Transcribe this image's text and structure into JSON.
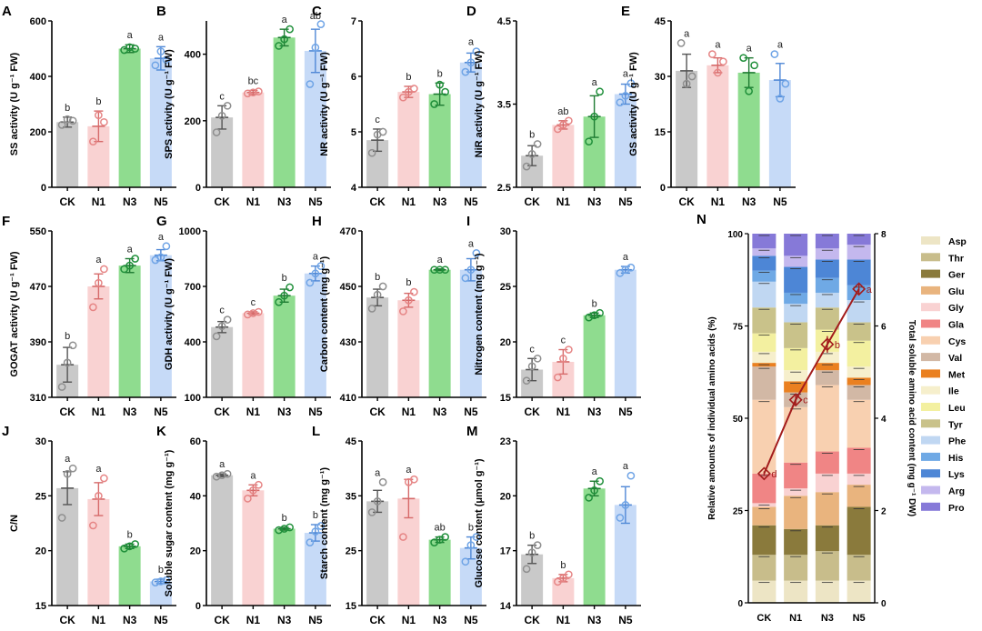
{
  "figure": {
    "categories": [
      "CK",
      "N1",
      "N3",
      "N5"
    ],
    "colors": {
      "CK": "#c9c9c9",
      "N1": "#f9d2d2",
      "N3": "#8fdc8f",
      "N5": "#c6daf7"
    },
    "marker_colors": {
      "CK": "#8f8f8f",
      "N1": "#e68585",
      "N3": "#1f8f3a",
      "N5": "#6fa4e6"
    },
    "errbar_colors": {
      "CK": "#555555",
      "N1": "#d66a6a",
      "N3": "#1d7a31",
      "N5": "#4f88d6"
    }
  },
  "chart_data": [
    {
      "panel": "A",
      "type": "bar",
      "ylabel": "SS activity (U g⁻¹ FW)",
      "ylim": [
        0,
        600
      ],
      "yticks": [
        "0",
        "200",
        "400",
        "600"
      ],
      "categories": [
        "CK",
        "N1",
        "N3",
        "N5"
      ],
      "values": [
        235,
        220,
        500,
        465
      ],
      "errors": [
        18,
        55,
        14,
        42
      ],
      "letters": [
        "b",
        "b",
        "a",
        "a"
      ],
      "points": [
        [
          225,
          245,
          240
        ],
        [
          165,
          260,
          235
        ],
        [
          495,
          505,
          500
        ],
        [
          440,
          490,
          460
        ]
      ]
    },
    {
      "panel": "B",
      "type": "bar",
      "ylabel": "SPS activity (U g⁻¹ FW)",
      "ylim": [
        0,
        500
      ],
      "yticks": [
        "0",
        "200",
        "400"
      ],
      "categories": [
        "CK",
        "N1",
        "N3",
        "N5"
      ],
      "values": [
        210,
        285,
        450,
        410
      ],
      "errors": [
        35,
        6,
        25,
        65
      ],
      "letters": [
        "c",
        "bc",
        "a",
        "ab"
      ],
      "points": [
        [
          165,
          215,
          245
        ],
        [
          282,
          285,
          288
        ],
        [
          425,
          445,
          475
        ],
        [
          310,
          420,
          490
        ]
      ]
    },
    {
      "panel": "C",
      "type": "bar",
      "ylabel": "NR activity (U g⁻¹ FW)",
      "ylim": [
        4,
        7
      ],
      "yticks": [
        "4",
        "5",
        "6",
        "7"
      ],
      "categories": [
        "CK",
        "N1",
        "N3",
        "N5"
      ],
      "values": [
        4.85,
        5.72,
        5.68,
        6.25
      ],
      "errors": [
        0.2,
        0.1,
        0.2,
        0.17
      ],
      "letters": [
        "c",
        "b",
        "b",
        "a"
      ],
      "points": [
        [
          4.62,
          4.95,
          5.0
        ],
        [
          5.62,
          5.72,
          5.78
        ],
        [
          5.5,
          5.85,
          5.72
        ],
        [
          6.08,
          6.25,
          6.45
        ]
      ]
    },
    {
      "panel": "D",
      "type": "bar",
      "ylabel": "NiR activity (U g⁻¹ FW)",
      "ylim": [
        2.5,
        4.5
      ],
      "yticks": [
        "2.5",
        "3.5",
        "4.5"
      ],
      "categories": [
        "CK",
        "N1",
        "N3",
        "N5"
      ],
      "values": [
        2.88,
        3.25,
        3.35,
        3.62
      ],
      "errors": [
        0.12,
        0.05,
        0.25,
        0.12
      ],
      "letters": [
        "b",
        "ab",
        "a",
        "a"
      ],
      "points": [
        [
          2.75,
          2.9,
          3.02
        ],
        [
          3.2,
          3.25,
          3.3
        ],
        [
          3.05,
          3.35,
          3.65
        ],
        [
          3.52,
          3.6,
          3.75
        ]
      ]
    },
    {
      "panel": "E",
      "type": "bar",
      "ylabel": "GS activity (U g⁻¹ FW)",
      "ylim": [
        0,
        45
      ],
      "yticks": [
        "0",
        "15",
        "30",
        "45"
      ],
      "categories": [
        "CK",
        "N1",
        "N3",
        "N5"
      ],
      "values": [
        31.5,
        33,
        31,
        29
      ],
      "errors": [
        4.5,
        2,
        4,
        4.5
      ],
      "letters": [
        "a",
        "a",
        "a",
        "a"
      ],
      "points": [
        [
          39,
          28,
          30
        ],
        [
          36,
          31,
          34
        ],
        [
          35,
          26,
          33
        ],
        [
          36,
          24,
          28
        ]
      ]
    },
    {
      "panel": "F",
      "type": "bar",
      "ylabel": "GOGAT activity (U g⁻¹ FW)",
      "ylim": [
        310,
        550
      ],
      "yticks": [
        "310",
        "390",
        "470",
        "550"
      ],
      "categories": [
        "CK",
        "N1",
        "N3",
        "N5"
      ],
      "values": [
        357,
        470,
        500,
        515
      ],
      "errors": [
        25,
        18,
        10,
        8
      ],
      "letters": [
        "b",
        "a",
        "a",
        "a"
      ],
      "points": [
        [
          325,
          360,
          385
        ],
        [
          440,
          475,
          495
        ],
        [
          495,
          500,
          510
        ],
        [
          508,
          512,
          528
        ]
      ]
    },
    {
      "panel": "G",
      "type": "bar",
      "ylabel": "GDH activity (U g⁻¹ FW)",
      "ylim": [
        100,
        1000
      ],
      "yticks": [
        "100",
        "400",
        "700",
        "1000"
      ],
      "categories": [
        "CK",
        "N1",
        "N3",
        "N5"
      ],
      "values": [
        480,
        555,
        650,
        770
      ],
      "errors": [
        30,
        8,
        35,
        40
      ],
      "letters": [
        "c",
        "c",
        "b",
        "a"
      ],
      "points": [
        [
          430,
          485,
          520
        ],
        [
          548,
          555,
          562
        ],
        [
          615,
          650,
          695
        ],
        [
          720,
          770,
          810
        ]
      ]
    },
    {
      "panel": "H",
      "type": "bar",
      "ylabel": "Carbon content (mg g⁻¹)",
      "ylim": [
        410,
        470
      ],
      "yticks": [
        "410",
        "430",
        "450",
        "470"
      ],
      "categories": [
        "CK",
        "N1",
        "N3",
        "N5"
      ],
      "values": [
        446,
        445,
        456,
        456
      ],
      "errors": [
        3,
        2.5,
        0.3,
        4
      ],
      "letters": [
        "b",
        "b",
        "a",
        "a"
      ],
      "points": [
        [
          442,
          447,
          450
        ],
        [
          441,
          445,
          448
        ],
        [
          456,
          456,
          456
        ],
        [
          453,
          456,
          462
        ]
      ]
    },
    {
      "panel": "I",
      "type": "bar",
      "ylabel": "Nitrogen content (mg g⁻¹)",
      "ylim": [
        15,
        30
      ],
      "yticks": [
        "15",
        "20",
        "25",
        "30"
      ],
      "categories": [
        "CK",
        "N1",
        "N3",
        "N5"
      ],
      "values": [
        17.5,
        18.2,
        22.4,
        26.5
      ],
      "errors": [
        1,
        1.1,
        0.2,
        0.3
      ],
      "letters": [
        "c",
        "c",
        "b",
        "a"
      ],
      "points": [
        [
          16.5,
          17.8,
          18.5
        ],
        [
          16.8,
          18.5,
          19.3
        ],
        [
          22.2,
          22.4,
          22.6
        ],
        [
          26.2,
          26.5,
          26.7
        ]
      ]
    },
    {
      "panel": "J",
      "type": "bar",
      "ylabel": "C/N",
      "ylim": [
        15,
        30
      ],
      "yticks": [
        "15",
        "20",
        "25",
        "30"
      ],
      "categories": [
        "CK",
        "N1",
        "N3",
        "N5"
      ],
      "values": [
        25.7,
        24.7,
        20.4,
        17.2
      ],
      "errors": [
        1.5,
        1.5,
        0.2,
        0.2
      ],
      "letters": [
        "a",
        "a",
        "b",
        "b"
      ],
      "points": [
        [
          23,
          27,
          27.5
        ],
        [
          22.3,
          25,
          26.6
        ],
        [
          20.2,
          20.4,
          20.6
        ],
        [
          17.1,
          17.2,
          17.3
        ]
      ]
    },
    {
      "panel": "K",
      "type": "bar",
      "ylabel": "Soluble sugar content (mg g⁻¹)",
      "ylim": [
        0,
        60
      ],
      "yticks": [
        "0",
        "20",
        "40",
        "60"
      ],
      "categories": [
        "CK",
        "N1",
        "N3",
        "N5"
      ],
      "values": [
        47.5,
        42,
        28,
        26.5
      ],
      "errors": [
        0.5,
        2,
        0.5,
        3
      ],
      "letters": [
        "a",
        "a",
        "b",
        "b"
      ],
      "points": [
        [
          47,
          47.5,
          48
        ],
        [
          39,
          42,
          44
        ],
        [
          27.5,
          28,
          28.5
        ],
        [
          23,
          27,
          29
        ]
      ]
    },
    {
      "panel": "L",
      "type": "bar",
      "ylabel": "Starch content (mg g⁻¹)",
      "ylim": [
        15,
        45
      ],
      "yticks": [
        "15",
        "25",
        "35",
        "45"
      ],
      "categories": [
        "CK",
        "N1",
        "N3",
        "N5"
      ],
      "values": [
        34,
        34.5,
        27,
        25.5
      ],
      "errors": [
        2,
        3.5,
        0.5,
        2
      ],
      "letters": [
        "a",
        "a",
        "ab",
        "b"
      ],
      "points": [
        [
          32,
          34,
          37.5
        ],
        [
          27.5,
          37.5,
          38
        ],
        [
          26.5,
          27,
          27.5
        ],
        [
          23,
          26,
          27.5
        ]
      ]
    },
    {
      "panel": "M",
      "type": "bar",
      "ylabel": "Glucose content (μmol g⁻¹)",
      "ylim": [
        14,
        23
      ],
      "yticks": [
        "14",
        "17",
        "20",
        "23"
      ],
      "categories": [
        "CK",
        "N1",
        "N3",
        "N5"
      ],
      "values": [
        16.8,
        15.5,
        20.4,
        19.5
      ],
      "errors": [
        0.5,
        0.2,
        0.4,
        1
      ],
      "letters": [
        "b",
        "b",
        "a",
        "a"
      ],
      "points": [
        [
          16,
          16.9,
          17.3
        ],
        [
          15.3,
          15.5,
          15.7
        ],
        [
          19.9,
          20.3,
          20.8
        ],
        [
          18.8,
          19.5,
          21.1
        ]
      ]
    },
    {
      "panel": "N",
      "type": "stacked-bar",
      "ylabel": "Relative amounts of individual amino acids (%)",
      "ylabel2": "Total soluble amino acid content (mg g⁻¹ DW)",
      "ylim": [
        0,
        100
      ],
      "yticks": [
        "0",
        "25",
        "50",
        "75",
        "100"
      ],
      "ylim2": [
        0,
        8
      ],
      "yticks2": [
        "0",
        "2",
        "4",
        "6",
        "8"
      ],
      "categories": [
        "CK",
        "N1",
        "N3",
        "N5"
      ],
      "components": [
        "Asp",
        "Thr",
        "Ger",
        "Glu",
        "Gly",
        "Gla",
        "Cys",
        "Val",
        "Met",
        "Ile",
        "Leu",
        "Tyr",
        "Phe",
        "His",
        "Lys",
        "Arg",
        "Pro"
      ],
      "component_colors": [
        "#ede5c5",
        "#c8bd8b",
        "#8a7a3c",
        "#e9b47e",
        "#f9d2d2",
        "#f08585",
        "#f8d0b0",
        "#d2b8a5",
        "#ea8020",
        "#f6efcc",
        "#f3f0a0",
        "#c9c28a",
        "#c0d7f2",
        "#6fa9e5",
        "#4d86d6",
        "#c4b8ee",
        "#8679d8"
      ],
      "values_percent": [
        [
          6,
          7,
          8,
          5,
          1,
          8,
          20,
          9,
          1,
          3,
          5,
          7,
          7,
          3,
          4,
          2,
          4
        ],
        [
          6,
          7,
          7,
          9,
          2,
          7,
          15,
          4,
          3,
          3,
          6,
          7,
          5,
          3,
          7,
          3,
          6
        ],
        [
          6,
          8,
          7,
          9,
          5,
          6,
          18,
          4,
          2,
          3,
          6,
          6,
          4,
          4,
          5,
          3,
          4
        ],
        [
          6,
          7,
          13,
          6,
          3,
          7,
          13,
          4,
          2,
          3,
          7,
          5,
          6,
          4,
          7,
          4,
          3
        ]
      ],
      "line_values": [
        2.8,
        4.4,
        5.6,
        6.8
      ],
      "line_errors": [
        0.05,
        0.1,
        0.18,
        0.1
      ],
      "line_letters": [
        "d",
        "c",
        "b",
        "a"
      ]
    }
  ]
}
